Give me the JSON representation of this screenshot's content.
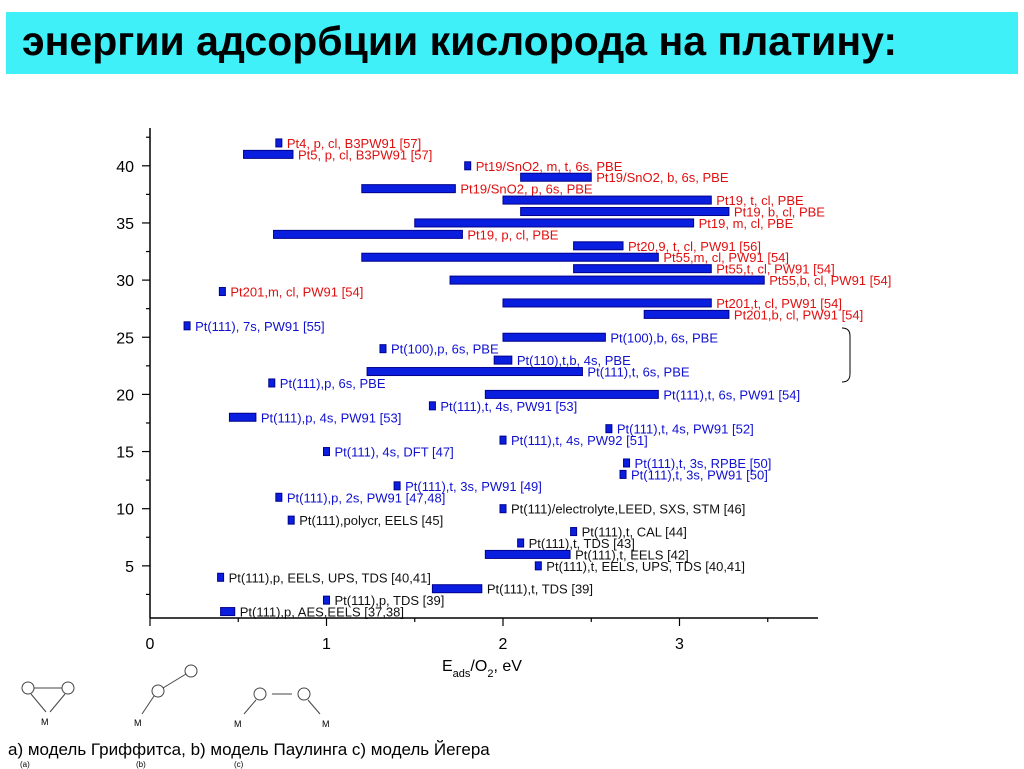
{
  "title": "энергии адсорбции кислорода на платину:",
  "caption": "a) модель Гриффитса, b) модель Паулинга c) модель Йегера",
  "model_labels": {
    "a": "(a)",
    "b": "(b)",
    "c": "(c)",
    "metal": "M"
  },
  "colors": {
    "bar": "#0a1ee0",
    "bar_edge": "#00008b",
    "red_label": "#e01010",
    "blue_label": "#1010d0",
    "black_label": "#111111",
    "title_bg": "#40f0f8"
  },
  "chart_data": {
    "type": "bar",
    "orientation": "horizontal-ranges",
    "xlabel": "E_ads/O2, eV",
    "xlim": [
      0,
      3.75
    ],
    "ylim": [
      0,
      42.8
    ],
    "xticks": [
      "0",
      "1",
      "2",
      "3"
    ],
    "yticks": [
      "5",
      "10",
      "15",
      "20",
      "25",
      "30",
      "35",
      "40"
    ],
    "grid": false,
    "series": [
      {
        "y": 42,
        "x0": 0.73,
        "x1": 0.73,
        "label": "Pt4, p, cl, B3PW91 [57]",
        "color": "red"
      },
      {
        "y": 41,
        "x0": 0.53,
        "x1": 0.81,
        "label": "Pt5, p, cl, B3PW91 [57]",
        "color": "red"
      },
      {
        "y": 40,
        "x0": 1.8,
        "x1": 1.8,
        "label": "Pt19/SnO2, m, t, 6s, PBE",
        "color": "red"
      },
      {
        "y": 39,
        "x0": 2.1,
        "x1": 2.5,
        "label": "Pt19/SnO2, b, 6s, PBE",
        "color": "red"
      },
      {
        "y": 38,
        "x0": 1.2,
        "x1": 1.73,
        "label": "Pt19/SnO2, p, 6s, PBE",
        "color": "red"
      },
      {
        "y": 37,
        "x0": 2.0,
        "x1": 3.18,
        "label": "Pt19, t, cl, PBE",
        "color": "red"
      },
      {
        "y": 36,
        "x0": 2.1,
        "x1": 3.28,
        "label": "Pt19, b, cl, PBE",
        "color": "red"
      },
      {
        "y": 35,
        "x0": 1.5,
        "x1": 3.08,
        "label": "Pt19, m, cl, PBE",
        "color": "red"
      },
      {
        "y": 34,
        "x0": 0.7,
        "x1": 1.77,
        "label": "Pt19, p, cl, PBE",
        "color": "red"
      },
      {
        "y": 33,
        "x0": 2.4,
        "x1": 2.68,
        "label": "Pt20,9, t, cl, PW91 [56]",
        "color": "red"
      },
      {
        "y": 32,
        "x0": 1.2,
        "x1": 2.88,
        "label": "Pt55,m, cl, PW91 [54]",
        "color": "red"
      },
      {
        "y": 31,
        "x0": 2.4,
        "x1": 3.18,
        "label": "Pt55,t, cl, PW91 [54]",
        "color": "red"
      },
      {
        "y": 30,
        "x0": 1.7,
        "x1": 3.48,
        "label": "Pt55,b, cl, PW91 [54]",
        "color": "red"
      },
      {
        "y": 29,
        "x0": 0.41,
        "x1": 0.41,
        "label": "Pt201,m, cl, PW91 [54]",
        "color": "red"
      },
      {
        "y": 28,
        "x0": 2.0,
        "x1": 3.18,
        "label": "Pt201,t, cl, PW91 [54]",
        "color": "red"
      },
      {
        "y": 27,
        "x0": 2.8,
        "x1": 3.28,
        "label": "Pt201,b, cl, PW91 [54]",
        "color": "red"
      },
      {
        "y": 26,
        "x0": 0.21,
        "x1": 0.21,
        "label": "Pt(111), 7s, PW91 [55]",
        "color": "blue"
      },
      {
        "y": 25,
        "x0": 2.0,
        "x1": 2.58,
        "label": "Pt(100),b, 6s, PBE",
        "color": "blue"
      },
      {
        "y": 24,
        "x0": 1.32,
        "x1": 1.32,
        "label": "Pt(100),p, 6s, PBE",
        "color": "blue"
      },
      {
        "y": 23,
        "x0": 1.95,
        "x1": 2.05,
        "label": "Pt(110),t,b, 4s, PBE",
        "color": "blue"
      },
      {
        "y": 22,
        "x0": 1.23,
        "x1": 2.45,
        "label": "Pt(111),t, 6s, PBE",
        "color": "blue"
      },
      {
        "y": 21,
        "x0": 0.69,
        "x1": 0.69,
        "label": "Pt(111),p, 6s, PBE",
        "color": "blue"
      },
      {
        "y": 20,
        "x0": 1.9,
        "x1": 2.88,
        "label": "Pt(111),t, 6s, PW91 [54]",
        "color": "blue"
      },
      {
        "y": 19,
        "x0": 1.6,
        "x1": 1.6,
        "label": "Pt(111),t, 4s, PW91 [53]",
        "color": "blue"
      },
      {
        "y": 18,
        "x0": 0.45,
        "x1": 0.6,
        "label": "Pt(111),p, 4s, PW91 [53]",
        "color": "blue"
      },
      {
        "y": 17,
        "x0": 2.6,
        "x1": 2.6,
        "label": "Pt(111),t, 4s, PW91 [52]",
        "color": "blue"
      },
      {
        "y": 16,
        "x0": 2.0,
        "x1": 2.0,
        "label": "Pt(111),t, 4s, PW92 [51]",
        "color": "blue"
      },
      {
        "y": 15,
        "x0": 1.0,
        "x1": 1.0,
        "label": "Pt(111), 4s, DFT [47]",
        "color": "blue"
      },
      {
        "y": 14,
        "x0": 2.7,
        "x1": 2.7,
        "label": "Pt(111),t, 3s, RPBE [50]",
        "color": "blue"
      },
      {
        "y": 13,
        "x0": 2.68,
        "x1": 2.68,
        "label": "Pt(111),t, 3s, PW91 [50]",
        "color": "blue"
      },
      {
        "y": 12,
        "x0": 1.4,
        "x1": 1.4,
        "label": "Pt(111),t, 3s, PW91 [49]",
        "color": "blue"
      },
      {
        "y": 11,
        "x0": 0.73,
        "x1": 0.73,
        "label": "Pt(111),p, 2s, PW91 [47,48]",
        "color": "blue"
      },
      {
        "y": 10,
        "x0": 2.0,
        "x1": 2.0,
        "label": "Pt(111)/electrolyte,LEED, SXS, STM [46]",
        "color": "black"
      },
      {
        "y": 9,
        "x0": 0.8,
        "x1": 0.8,
        "label": "Pt(111),polycr, EELS [45]",
        "color": "black"
      },
      {
        "y": 8,
        "x0": 2.4,
        "x1": 2.4,
        "label": "Pt(111),t, CAL [44]",
        "color": "black"
      },
      {
        "y": 7,
        "x0": 2.1,
        "x1": 2.1,
        "label": "Pt(111),t, TDS [43]",
        "color": "black"
      },
      {
        "y": 6,
        "x0": 1.9,
        "x1": 2.38,
        "label": "Pt(111),t, EELS [42]",
        "color": "black"
      },
      {
        "y": 5,
        "x0": 2.2,
        "x1": 2.2,
        "label": "Pt(111),t, EELS, UPS, TDS [40,41]",
        "color": "black"
      },
      {
        "y": 4,
        "x0": 0.4,
        "x1": 0.4,
        "label": "Pt(111),p, EELS, UPS, TDS [40,41]",
        "color": "black"
      },
      {
        "y": 3,
        "x0": 1.6,
        "x1": 1.88,
        "label": "Pt(111),t, TDS [39]",
        "color": "black"
      },
      {
        "y": 2,
        "x0": 1.0,
        "x1": 1.0,
        "label": "Pt(111),p, TDS [39]",
        "color": "black"
      },
      {
        "y": 1,
        "x0": 0.4,
        "x1": 0.48,
        "label": "Pt(111),p, AES,EELS [37,38]",
        "color": "black"
      }
    ]
  }
}
